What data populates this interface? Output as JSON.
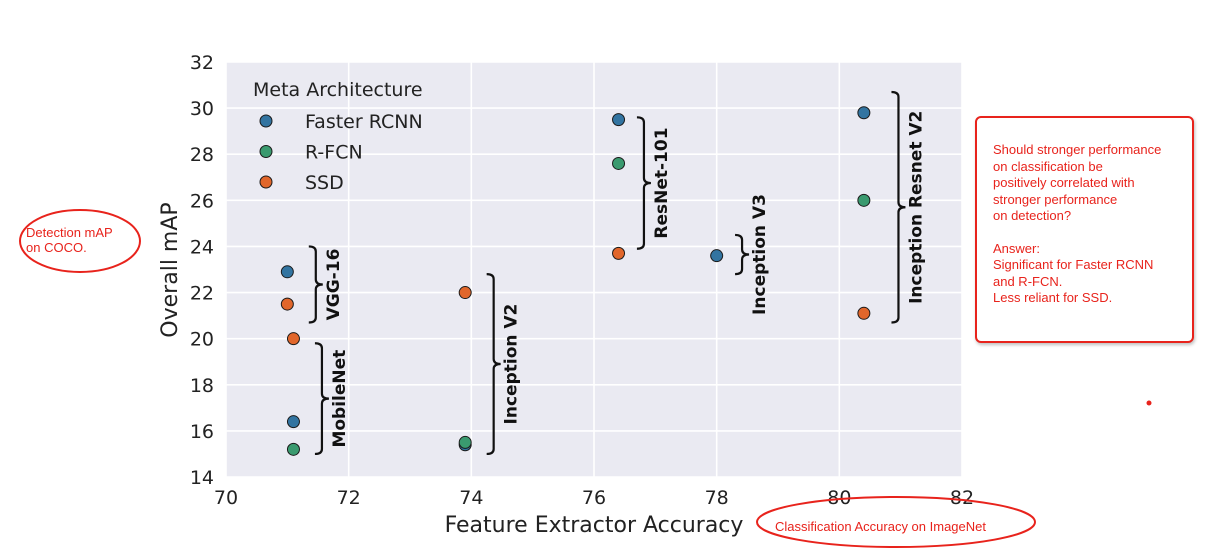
{
  "chart_data": {
    "type": "scatter",
    "xlabel": "Feature Extractor Accuracy",
    "ylabel": "Overall mAP",
    "xlim": [
      70,
      82
    ],
    "ylim": [
      14,
      32
    ],
    "xticks": [
      70,
      72,
      74,
      76,
      78,
      80,
      82
    ],
    "yticks": [
      14,
      16,
      18,
      20,
      22,
      24,
      26,
      28,
      30,
      32
    ],
    "grid": true,
    "legend": {
      "title": "Meta Architecture",
      "placement": "top-left",
      "entries": [
        "Faster RCNN",
        "R-FCN",
        "SSD"
      ]
    },
    "series": [
      {
        "name": "Faster RCNN",
        "color": "#3274a1",
        "points": [
          {
            "x": 71.0,
            "y": 22.9
          },
          {
            "x": 71.1,
            "y": 16.4
          },
          {
            "x": 73.9,
            "y": 15.4
          },
          {
            "x": 76.4,
            "y": 29.5
          },
          {
            "x": 78.0,
            "y": 23.6
          },
          {
            "x": 80.4,
            "y": 29.8
          }
        ]
      },
      {
        "name": "R-FCN",
        "color": "#3a9a6f",
        "points": [
          {
            "x": 71.1,
            "y": 15.2
          },
          {
            "x": 73.9,
            "y": 15.5
          },
          {
            "x": 76.4,
            "y": 27.6
          },
          {
            "x": 80.4,
            "y": 26.0
          }
        ]
      },
      {
        "name": "SSD",
        "color": "#e1662b",
        "points": [
          {
            "x": 71.0,
            "y": 21.5
          },
          {
            "x": 71.1,
            "y": 20.0
          },
          {
            "x": 73.9,
            "y": 22.0
          },
          {
            "x": 76.4,
            "y": 23.7
          },
          {
            "x": 80.4,
            "y": 21.1
          }
        ]
      }
    ],
    "groups": [
      {
        "label": "VGG-16",
        "y_range": [
          20.7,
          24.0
        ],
        "brace_x": 71.35
      },
      {
        "label": "MobileNet",
        "y_range": [
          15.0,
          19.8
        ],
        "brace_x": 71.45
      },
      {
        "label": "Inception V2",
        "y_range": [
          15.0,
          22.8
        ],
        "brace_x": 74.25
      },
      {
        "label": "ResNet-101",
        "y_range": [
          23.9,
          29.6
        ],
        "brace_x": 76.7
      },
      {
        "label": "Inception V3",
        "y_range": [
          22.8,
          24.5
        ],
        "brace_x": 78.3
      },
      {
        "label": "Inception Resnet V2",
        "y_range": [
          20.7,
          30.7
        ],
        "brace_x": 80.85
      }
    ]
  },
  "annotations": {
    "ylabel_note": [
      "Detection mAP",
      "on COCO."
    ],
    "xlabel_note": "Classification Accuracy on ImageNet",
    "question_lines": [
      "Should stronger performance",
      "on classification be",
      "positively correlated with",
      "stronger performance",
      "on detection?"
    ],
    "answer_lines": [
      "Answer:",
      "Significant for Faster RCNN",
      "and R-FCN.",
      "Less reliant for SSD."
    ]
  }
}
